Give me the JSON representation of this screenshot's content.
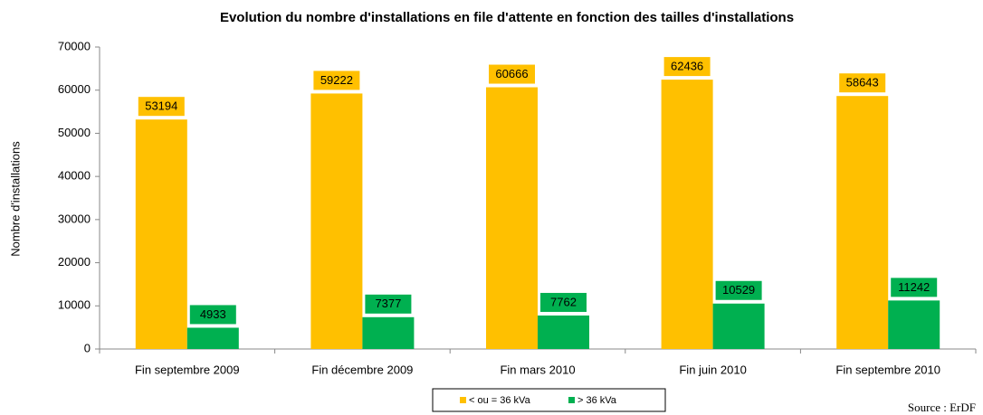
{
  "chart_data": {
    "type": "bar",
    "title": "Evolution du nombre d'installations en file d'attente en fonction des tailles d'installations",
    "y_label": "Nombre d'installations",
    "source": "Source : ErDF",
    "categories": [
      "Fin septembre 2009",
      "Fin décembre 2009",
      "Fin mars 2010",
      "Fin juin 2010",
      "Fin septembre 2010"
    ],
    "series": [
      {
        "name": "< ou = 36 kVa",
        "color": "#ffc000",
        "values": [
          53194,
          59222,
          60666,
          62436,
          58643
        ]
      },
      {
        "name": "> 36 kVa",
        "color": "#00b050",
        "values": [
          4933,
          7377,
          7762,
          10529,
          11242
        ]
      }
    ],
    "ylim": [
      0,
      70000
    ],
    "yticks": [
      0,
      10000,
      20000,
      30000,
      40000,
      50000,
      60000,
      70000
    ],
    "grid": false,
    "legend": "bottom"
  }
}
